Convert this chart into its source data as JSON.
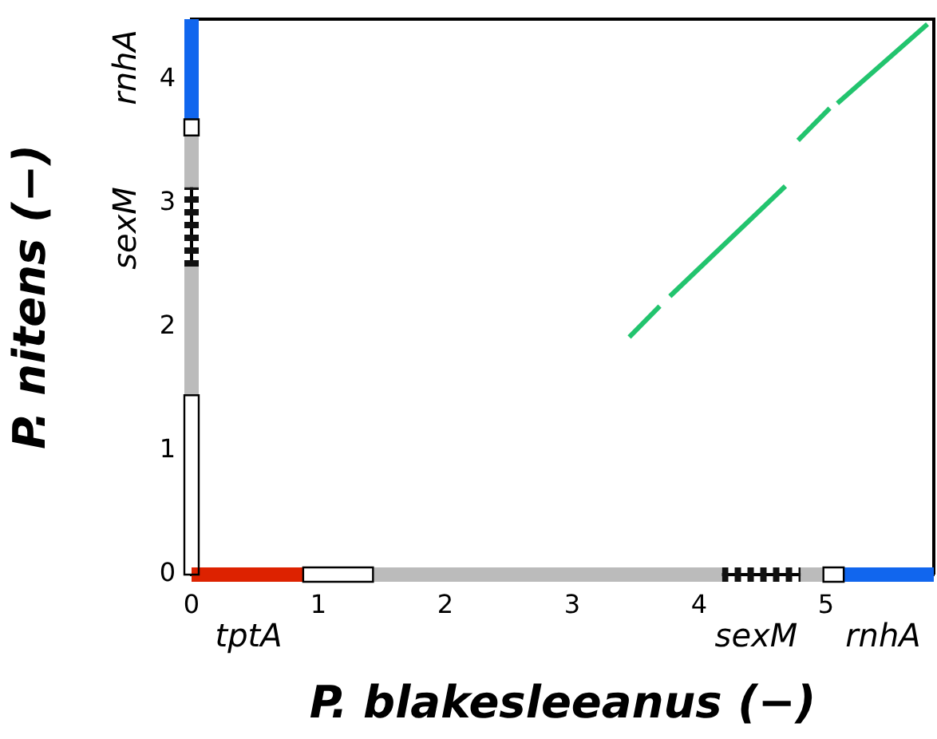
{
  "chart_data": {
    "type": "line",
    "xlabel": "P. blakesleeanus (−)",
    "ylabel": "P. nitens (−)",
    "xlim": [
      0,
      5.85
    ],
    "ylim": [
      0,
      4.49
    ],
    "xticks": [
      0,
      1,
      2,
      3,
      4,
      5
    ],
    "yticks": [
      0,
      1,
      2,
      3,
      4
    ],
    "grid": false,
    "legend": false,
    "marker": "none",
    "series": [
      {
        "color": "#22c46e",
        "x": [
          3.45,
          3.69
        ],
        "values": [
          1.92,
          2.17
        ]
      },
      {
        "color": "#22c46e",
        "x": [
          3.77,
          4.68
        ],
        "values": [
          2.25,
          3.14
        ]
      },
      {
        "color": "#22c46e",
        "x": [
          4.78,
          5.03
        ],
        "values": [
          3.51,
          3.77
        ]
      },
      {
        "color": "#22c46e",
        "x": [
          5.09,
          5.8
        ],
        "values": [
          3.81,
          4.45
        ]
      },
      {
        "color": "#dd2200",
        "x": [
          0,
          0.88
        ],
        "values": [
          0,
          0
        ]
      },
      {
        "color": "#ffffff",
        "x": [
          0.88,
          1.43
        ],
        "values": [
          0,
          0
        ]
      },
      {
        "color": "#bbbbbb",
        "x": [
          1.43,
          4.18
        ],
        "values": [
          0,
          0
        ]
      },
      {
        "color": "#111111",
        "line_style": "dashed",
        "x": [
          4.18,
          4.8
        ],
        "values": [
          0,
          0
        ]
      },
      {
        "color": "#bbbbbb",
        "x": [
          4.8,
          4.98
        ],
        "values": [
          0,
          0
        ]
      },
      {
        "color": "#ffffff",
        "x": [
          4.98,
          5.14
        ],
        "values": [
          0,
          0
        ]
      },
      {
        "color": "#1166ee",
        "x": [
          5.14,
          5.85
        ],
        "values": [
          0,
          0
        ]
      },
      {
        "color": "#ffffff",
        "x": [
          0,
          0
        ],
        "values": [
          0,
          1.45
        ]
      },
      {
        "color": "#bbbbbb",
        "x": [
          0,
          0
        ],
        "values": [
          1.45,
          2.49
        ]
      },
      {
        "color": "#111111",
        "line_style": "dashed",
        "x": [
          0,
          0
        ],
        "values": [
          2.49,
          3.13
        ]
      },
      {
        "color": "#bbbbbb",
        "x": [
          0,
          0
        ],
        "values": [
          3.13,
          3.55
        ]
      },
      {
        "color": "#ffffff",
        "x": [
          0,
          0
        ],
        "values": [
          3.55,
          3.68
        ]
      },
      {
        "color": "#1166ee",
        "x": [
          0,
          0
        ],
        "values": [
          3.68,
          4.49
        ]
      }
    ],
    "annotations": [
      {
        "text": "tptA",
        "x": 0.45,
        "y": 0
      },
      {
        "text": "sexM",
        "x": 4.45,
        "y": 0
      },
      {
        "text": "rnhA",
        "x": 5.45,
        "y": 0
      },
      {
        "text": "sexM",
        "x": 0,
        "y": 2.8
      },
      {
        "text": "rnhA",
        "x": 0,
        "y": 4.1
      }
    ]
  }
}
